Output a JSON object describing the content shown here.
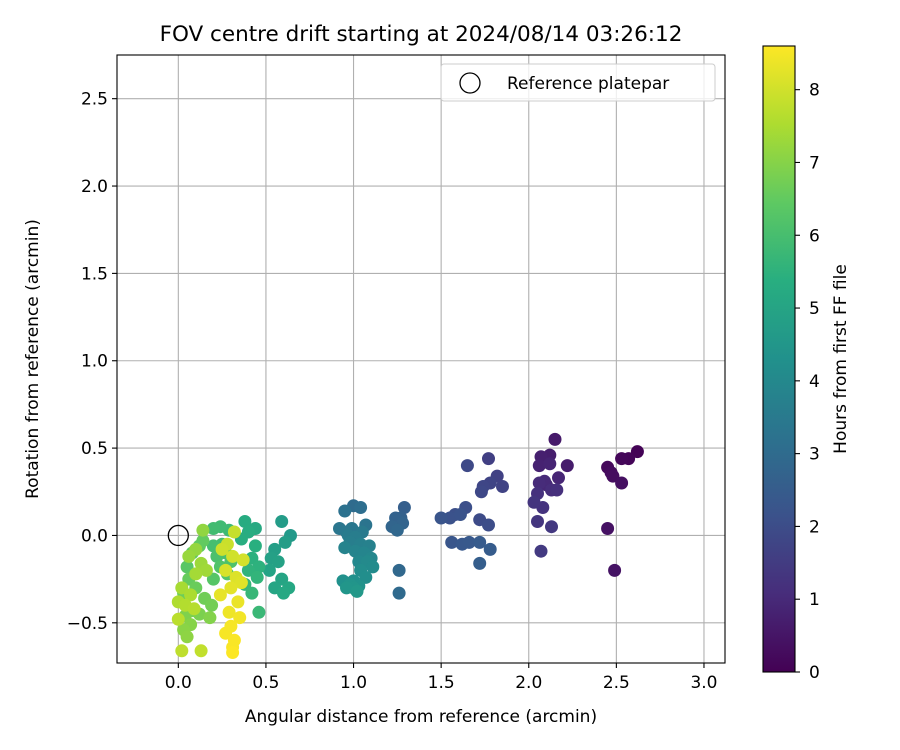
{
  "chart_data": {
    "type": "scatter",
    "title": "FOV centre drift starting at 2024/08/14 03:26:12",
    "xlabel": "Angular distance from reference (arcmin)",
    "ylabel": "Rotation from reference (arcmin)",
    "xlim": [
      -0.35,
      3.12
    ],
    "ylim": [
      -0.73,
      2.75
    ],
    "xticks": [
      0.0,
      0.5,
      1.0,
      1.5,
      2.0,
      2.5,
      3.0
    ],
    "xtick_labels": [
      "0.0",
      "0.5",
      "1.0",
      "1.5",
      "2.0",
      "2.5",
      "3.0"
    ],
    "yticks": [
      -0.5,
      0.0,
      0.5,
      1.0,
      1.5,
      2.0,
      2.5
    ],
    "ytick_labels": [
      "−0.5",
      "0.0",
      "0.5",
      "1.0",
      "1.5",
      "2.0",
      "2.5"
    ],
    "grid": true,
    "legend": {
      "placement": "top-right",
      "entries": [
        {
          "label": "Reference platepar",
          "marker": "open-circle",
          "color": "#000000"
        }
      ]
    },
    "colorbar": {
      "label": "Hours from first FF file",
      "colormap": "viridis",
      "range": [
        0,
        8.6
      ],
      "ticks": [
        0,
        1,
        2,
        3,
        4,
        5,
        6,
        7,
        8
      ],
      "tick_labels": [
        "0",
        "1",
        "2",
        "3",
        "4",
        "5",
        "6",
        "7",
        "8"
      ]
    },
    "reference_point": {
      "x": 0.0,
      "y": 0.0
    },
    "series": [
      {
        "color_by": "hours",
        "points": [
          [
            2.62,
            0.48,
            0.05
          ],
          [
            2.57,
            0.44,
            0.1
          ],
          [
            2.53,
            0.44,
            0.15
          ],
          [
            2.45,
            0.39,
            0.2
          ],
          [
            2.47,
            0.36,
            0.25
          ],
          [
            2.48,
            0.34,
            0.3
          ],
          [
            2.53,
            0.3,
            0.35
          ],
          [
            2.45,
            0.04,
            0.4
          ],
          [
            2.49,
            -0.2,
            0.45
          ],
          [
            2.15,
            0.55,
            0.6
          ],
          [
            2.22,
            0.4,
            0.65
          ],
          [
            2.12,
            0.46,
            0.7
          ],
          [
            2.07,
            0.45,
            0.75
          ],
          [
            2.06,
            0.4,
            0.8
          ],
          [
            2.12,
            0.41,
            0.85
          ],
          [
            2.17,
            0.33,
            0.9
          ],
          [
            2.1,
            0.29,
            0.95
          ],
          [
            2.09,
            0.31,
            1.0
          ],
          [
            2.06,
            0.3,
            1.05
          ],
          [
            2.13,
            0.26,
            1.1
          ],
          [
            2.16,
            0.26,
            1.15
          ],
          [
            2.05,
            0.24,
            1.2
          ],
          [
            2.08,
            0.16,
            1.25
          ],
          [
            2.03,
            0.19,
            1.3
          ],
          [
            2.05,
            0.08,
            1.35
          ],
          [
            2.13,
            0.05,
            1.4
          ],
          [
            2.07,
            -0.09,
            1.45
          ],
          [
            1.77,
            0.44,
            1.6
          ],
          [
            1.82,
            0.34,
            1.65
          ],
          [
            1.85,
            0.28,
            1.7
          ],
          [
            1.78,
            0.3,
            1.75
          ],
          [
            1.74,
            0.28,
            1.8
          ],
          [
            1.73,
            0.25,
            1.85
          ],
          [
            1.65,
            0.4,
            1.9
          ],
          [
            1.72,
            0.09,
            1.95
          ],
          [
            1.77,
            0.06,
            2.0
          ],
          [
            1.64,
            0.16,
            2.05
          ],
          [
            1.58,
            0.12,
            2.1
          ],
          [
            1.55,
            0.1,
            2.15
          ],
          [
            1.61,
            0.12,
            2.2
          ],
          [
            1.5,
            0.1,
            2.25
          ],
          [
            1.56,
            -0.04,
            2.3
          ],
          [
            1.62,
            -0.05,
            2.35
          ],
          [
            1.66,
            -0.04,
            2.4
          ],
          [
            1.72,
            -0.04,
            2.45
          ],
          [
            1.78,
            -0.08,
            2.5
          ],
          [
            1.72,
            -0.16,
            2.55
          ],
          [
            1.29,
            0.16,
            2.6
          ],
          [
            1.27,
            0.1,
            2.65
          ],
          [
            1.24,
            0.1,
            2.7
          ],
          [
            1.28,
            0.07,
            2.75
          ],
          [
            1.22,
            0.05,
            2.8
          ],
          [
            1.25,
            0.03,
            2.85
          ],
          [
            1.26,
            -0.2,
            2.9
          ],
          [
            1.26,
            -0.33,
            2.95
          ],
          [
            1.0,
            0.17,
            3.0
          ],
          [
            1.04,
            0.16,
            3.1
          ],
          [
            0.95,
            0.14,
            3.2
          ],
          [
            1.07,
            0.06,
            3.3
          ],
          [
            0.92,
            0.04,
            3.35
          ],
          [
            0.99,
            0.04,
            3.4
          ],
          [
            0.96,
            0.02,
            3.45
          ],
          [
            1.05,
            0.02,
            3.5
          ],
          [
            0.97,
            0.0,
            3.55
          ],
          [
            1.01,
            -0.01,
            3.6
          ],
          [
            0.98,
            -0.04,
            3.65
          ],
          [
            1.04,
            -0.05,
            3.7
          ],
          [
            1.09,
            -0.06,
            3.75
          ],
          [
            0.95,
            -0.07,
            3.8
          ],
          [
            1.01,
            -0.09,
            3.85
          ],
          [
            1.06,
            -0.1,
            3.9
          ],
          [
            1.1,
            -0.13,
            3.95
          ],
          [
            1.03,
            -0.15,
            4.0
          ],
          [
            1.08,
            -0.15,
            4.05
          ],
          [
            1.11,
            -0.18,
            4.1
          ],
          [
            1.04,
            -0.2,
            4.15
          ],
          [
            1.07,
            -0.24,
            4.2
          ],
          [
            1.0,
            -0.26,
            4.25
          ],
          [
            0.94,
            -0.26,
            4.3
          ],
          [
            1.03,
            -0.29,
            4.35
          ],
          [
            0.98,
            -0.28,
            4.4
          ],
          [
            1.0,
            -0.3,
            4.45
          ],
          [
            0.96,
            -0.3,
            4.5
          ],
          [
            1.02,
            -0.32,
            4.55
          ],
          [
            0.64,
            0.0,
            4.6
          ],
          [
            0.59,
            0.08,
            4.7
          ],
          [
            0.61,
            -0.04,
            4.75
          ],
          [
            0.55,
            -0.08,
            4.8
          ],
          [
            0.53,
            -0.13,
            4.85
          ],
          [
            0.57,
            -0.15,
            4.9
          ],
          [
            0.52,
            -0.2,
            4.95
          ],
          [
            0.59,
            -0.25,
            5.0
          ],
          [
            0.55,
            -0.3,
            5.05
          ],
          [
            0.63,
            -0.3,
            5.1
          ],
          [
            0.6,
            -0.33,
            5.15
          ],
          [
            0.44,
            0.04,
            5.2
          ],
          [
            0.38,
            0.08,
            5.25
          ],
          [
            0.4,
            0.02,
            5.3
          ],
          [
            0.36,
            -0.02,
            5.35
          ],
          [
            0.44,
            -0.06,
            5.4
          ],
          [
            0.42,
            -0.13,
            5.45
          ],
          [
            0.46,
            -0.18,
            5.5
          ],
          [
            0.4,
            -0.2,
            5.55
          ],
          [
            0.45,
            -0.24,
            5.6
          ],
          [
            0.38,
            -0.28,
            5.65
          ],
          [
            0.42,
            -0.33,
            5.7
          ],
          [
            0.46,
            -0.44,
            5.75
          ],
          [
            0.29,
            0.03,
            5.8
          ],
          [
            0.24,
            0.05,
            5.85
          ],
          [
            0.2,
            0.04,
            5.9
          ],
          [
            0.25,
            -0.05,
            5.95
          ],
          [
            0.2,
            -0.06,
            6.0
          ],
          [
            0.27,
            -0.1,
            6.05
          ],
          [
            0.22,
            -0.12,
            6.1
          ],
          [
            0.3,
            -0.15,
            6.15
          ],
          [
            0.24,
            -0.18,
            6.2
          ],
          [
            0.28,
            -0.22,
            6.25
          ],
          [
            0.2,
            -0.25,
            6.3
          ],
          [
            0.05,
            -0.18,
            6.35
          ],
          [
            0.08,
            -0.1,
            6.4
          ],
          [
            0.12,
            -0.06,
            6.45
          ],
          [
            0.14,
            -0.03,
            6.5
          ],
          [
            0.06,
            -0.25,
            6.55
          ],
          [
            0.1,
            -0.3,
            6.6
          ],
          [
            0.03,
            -0.33,
            6.65
          ],
          [
            0.15,
            -0.36,
            6.7
          ],
          [
            0.19,
            -0.4,
            6.75
          ],
          [
            0.08,
            -0.43,
            6.8
          ],
          [
            0.12,
            -0.45,
            6.85
          ],
          [
            0.04,
            -0.46,
            6.9
          ],
          [
            0.18,
            -0.47,
            6.95
          ],
          [
            0.07,
            -0.51,
            7.0
          ],
          [
            0.03,
            -0.54,
            7.05
          ],
          [
            0.05,
            -0.58,
            7.1
          ],
          [
            0.14,
            0.03,
            7.15
          ],
          [
            0.1,
            -0.08,
            7.2
          ],
          [
            0.06,
            -0.12,
            7.25
          ],
          [
            0.13,
            -0.16,
            7.3
          ],
          [
            0.16,
            -0.2,
            7.35
          ],
          [
            0.1,
            -0.22,
            7.4
          ],
          [
            0.02,
            -0.3,
            7.45
          ],
          [
            0.07,
            -0.34,
            7.5
          ],
          [
            0.0,
            -0.38,
            7.55
          ],
          [
            0.04,
            -0.4,
            7.6
          ],
          [
            0.09,
            -0.42,
            7.65
          ],
          [
            0.0,
            -0.48,
            7.7
          ],
          [
            0.02,
            -0.66,
            7.75
          ],
          [
            0.13,
            -0.66,
            7.8
          ],
          [
            0.32,
            0.02,
            7.85
          ],
          [
            0.28,
            -0.05,
            7.9
          ],
          [
            0.25,
            -0.08,
            7.95
          ],
          [
            0.31,
            -0.12,
            8.0
          ],
          [
            0.37,
            -0.14,
            8.05
          ],
          [
            0.27,
            -0.2,
            8.1
          ],
          [
            0.33,
            -0.24,
            8.15
          ],
          [
            0.36,
            -0.27,
            8.2
          ],
          [
            0.3,
            -0.3,
            8.25
          ],
          [
            0.24,
            -0.34,
            8.3
          ],
          [
            0.34,
            -0.38,
            8.35
          ],
          [
            0.29,
            -0.44,
            8.4
          ],
          [
            0.35,
            -0.47,
            8.45
          ],
          [
            0.3,
            -0.52,
            8.5
          ],
          [
            0.27,
            -0.56,
            8.5
          ],
          [
            0.32,
            -0.6,
            8.55
          ],
          [
            0.31,
            -0.64,
            8.55
          ],
          [
            0.31,
            -0.67,
            8.58
          ]
        ]
      }
    ]
  }
}
